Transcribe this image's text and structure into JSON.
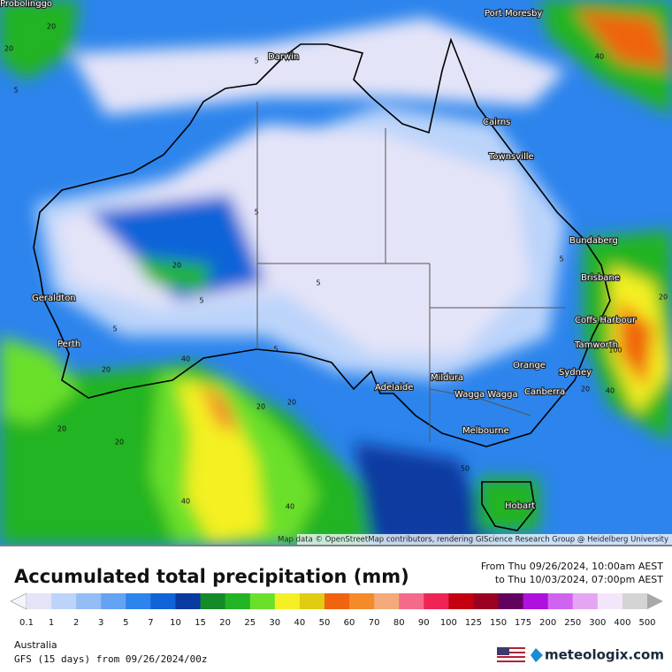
{
  "map": {
    "cities": [
      "Probolinggo",
      "Port Moresby",
      "Darwin",
      "Cairns",
      "Townsville",
      "Bundaberg",
      "Brisbane",
      "Coffs Harbour",
      "Tamworth",
      "Sydney",
      "Canberra",
      "Orange",
      "Wagga Wagga",
      "Mildura",
      "Adelaide",
      "Melbourne",
      "Hobart",
      "Geraldton",
      "Perth"
    ],
    "contour_labels": [
      20,
      20,
      5,
      5,
      5,
      5,
      5,
      20,
      40,
      40,
      20,
      20,
      20,
      40,
      40,
      20,
      5,
      5,
      20,
      50,
      100,
      40,
      20,
      20,
      5
    ],
    "attribution": "Map data © OpenStreetMap contributors, rendering GIScience Research Group @ Heidelberg University"
  },
  "header": {
    "title": "Accumulated total precipitation (mm)",
    "from": "From Thu 09/26/2024, 10:00am AEST",
    "to": "to Thu 10/03/2024, 07:00pm AEST"
  },
  "colorbar": {
    "labels": [
      0.1,
      1,
      2,
      3,
      5,
      7,
      10,
      15,
      20,
      25,
      30,
      40,
      50,
      60,
      70,
      80,
      90,
      100,
      125,
      150,
      175,
      200,
      250,
      300,
      400,
      500
    ],
    "colors": [
      "#e4e4f8",
      "#bcd4fa",
      "#94bcf6",
      "#64a2f4",
      "#2c84ec",
      "#1064d8",
      "#0a3aa0",
      "#158a28",
      "#22b424",
      "#6ae02a",
      "#f4f024",
      "#e0cc10",
      "#f06410",
      "#f48a2a",
      "#f4aa7a",
      "#f46a8a",
      "#f02454",
      "#c40010",
      "#9a0020",
      "#62005e",
      "#ae10e0",
      "#d064f0",
      "#e4a6f2",
      "#f4e6fa",
      "#d4d4d4"
    ]
  },
  "footer": {
    "region": "Australia",
    "model": "GFS (15 days) from  09/26/2024/00z",
    "brand": "meteologix.com"
  }
}
